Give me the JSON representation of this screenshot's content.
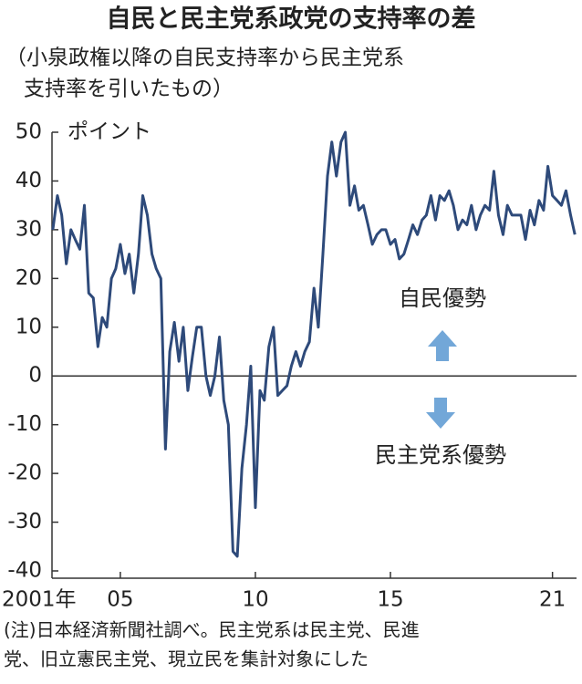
{
  "chart_data": {
    "type": "line",
    "title": "自民と民主党系政党の支持率の差",
    "subtitle": [
      "（小泉政権以降の自民支持率から民主党系",
      "支持率を引いたもの）"
    ],
    "y_label": "ポイント",
    "annotations": [
      "自民優勢",
      "民主党系優勢"
    ],
    "notes": [
      "(注)日本経済新聞社調べ。民主党系は民主党、民進",
      "党、旧立憲民主党、現立民を集計対象にした"
    ],
    "xlim": [
      2002.47,
      2021.89
    ],
    "xticks": [
      {
        "value": 2001,
        "label": "2001年"
      },
      {
        "value": 2005,
        "label": "05"
      },
      {
        "value": 2010,
        "label": "10"
      },
      {
        "value": 2015,
        "label": "15"
      },
      {
        "value": 2021,
        "label": "21"
      }
    ],
    "ylim": [
      -40,
      50
    ],
    "yticks": [
      50,
      40,
      30,
      20,
      10,
      0,
      -10,
      -20,
      -30,
      -40
    ],
    "x": [
      2002.5,
      2002.67,
      2002.83,
      2003,
      2003.17,
      2003.33,
      2003.5,
      2003.67,
      2003.83,
      2004,
      2004.17,
      2004.33,
      2004.5,
      2004.67,
      2004.83,
      2005,
      2005.17,
      2005.33,
      2005.5,
      2005.67,
      2005.83,
      2006,
      2006.17,
      2006.33,
      2006.5,
      2006.67,
      2006.83,
      2007,
      2007.17,
      2007.33,
      2007.5,
      2007.67,
      2007.83,
      2008,
      2008.17,
      2008.33,
      2008.5,
      2008.67,
      2008.83,
      2009,
      2009.17,
      2009.33,
      2009.5,
      2009.67,
      2009.83,
      2010,
      2010.17,
      2010.33,
      2010.5,
      2010.67,
      2010.83,
      2011,
      2011.17,
      2011.33,
      2011.5,
      2011.67,
      2011.83,
      2012,
      2012.17,
      2012.33,
      2012.5,
      2012.67,
      2012.83,
      2013,
      2013.17,
      2013.33,
      2013.5,
      2013.67,
      2013.83,
      2014,
      2014.17,
      2014.33,
      2014.5,
      2014.67,
      2014.83,
      2015,
      2015.17,
      2015.33,
      2015.5,
      2015.67,
      2015.83,
      2016,
      2016.17,
      2016.33,
      2016.5,
      2016.67,
      2016.83,
      2017,
      2017.17,
      2017.33,
      2017.5,
      2017.67,
      2017.83,
      2018,
      2018.17,
      2018.33,
      2018.5,
      2018.67,
      2018.83,
      2019,
      2019.17,
      2019.33,
      2019.5,
      2019.67,
      2019.83,
      2020,
      2020.17,
      2020.33,
      2020.5,
      2020.67,
      2020.83,
      2021,
      2021.17,
      2021.33,
      2021.5,
      2021.67,
      2021.83
    ],
    "series": [
      {
        "color": "#2e4a7a",
        "values": [
          30,
          37,
          33,
          23,
          30,
          28,
          26,
          35,
          17,
          16,
          6,
          12,
          10,
          20,
          22,
          27,
          21,
          25,
          17,
          25,
          37,
          33,
          25,
          22,
          20,
          -15,
          5,
          11,
          3,
          10,
          -3,
          4,
          10,
          10,
          0,
          -4,
          0,
          8,
          -5,
          -10,
          -36,
          -37,
          -19,
          -10,
          2,
          -27,
          -3,
          -5,
          6,
          10,
          -4,
          -3,
          -2,
          2,
          5,
          2,
          5,
          7,
          18,
          10,
          25,
          41,
          48,
          41,
          48,
          50,
          35,
          39,
          34,
          35,
          31,
          27,
          29,
          30,
          30,
          27,
          28,
          24,
          25,
          28,
          31,
          29,
          32,
          33,
          37,
          32,
          37,
          36,
          38,
          35,
          30,
          32,
          31,
          35,
          30,
          33,
          35,
          34,
          42,
          33,
          29,
          35,
          33,
          33,
          33,
          28,
          34,
          31,
          36,
          34,
          43,
          37,
          36,
          35,
          38,
          33,
          29
        ]
      }
    ],
    "arrow_color": "#72a7d8"
  }
}
